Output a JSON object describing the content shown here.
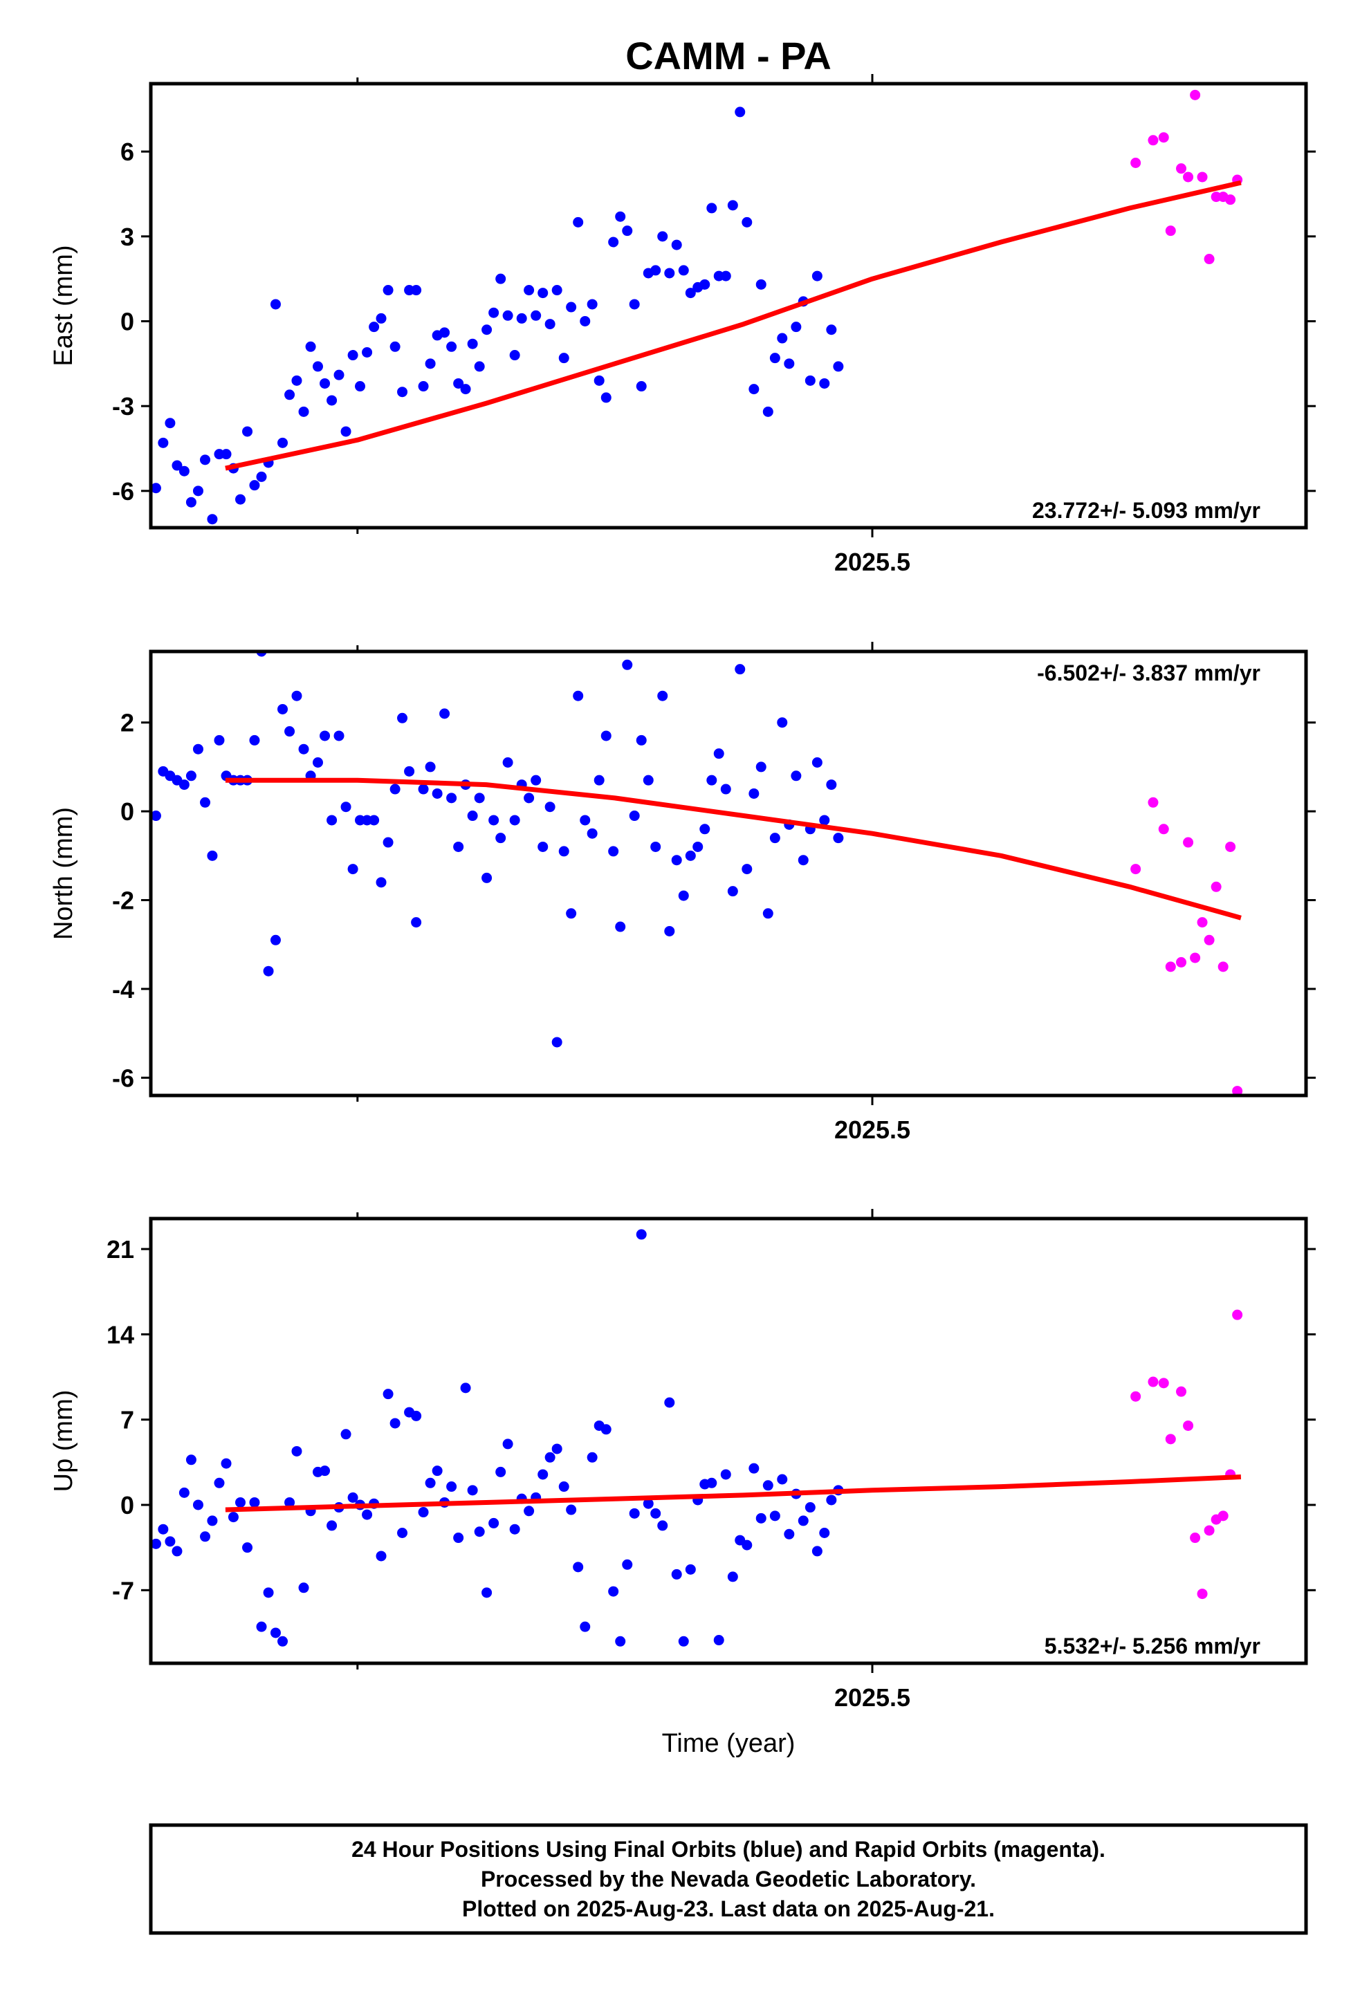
{
  "title": "CAMM - PA",
  "x_label": "Time (year)",
  "colors": {
    "final": "#0000ff",
    "rapid": "#ff00ff",
    "fit": "#ff0000",
    "frame": "#000000"
  },
  "footer": [
    "24 Hour Positions Using Final Orbits (blue) and Rapid Orbits (magenta).",
    "Processed by the Nevada Geodetic Laboratory.",
    "Plotted on 2025-Aug-23. Last data on 2025-Aug-21."
  ],
  "chart_data": [
    {
      "type": "scatter",
      "component": "east",
      "ylabel": "East (mm)",
      "ylim": [
        -7.3,
        8.4
      ],
      "yticks": [
        -6,
        -3,
        0,
        3,
        6
      ],
      "xlim": [
        2025.2197,
        2025.6685
      ],
      "xticks": [
        2025.5
      ],
      "xminor": [
        2025.3,
        2025.7
      ],
      "rate_text": "23.772+/- 5.093 mm/yr",
      "rate_position": "bottom-right",
      "fit": {
        "x": [
          2025.2487,
          2025.3,
          2025.35,
          2025.4,
          2025.45,
          2025.5,
          2025.55,
          2025.6,
          2025.6432
        ],
        "y": [
          -5.2,
          -4.2,
          -2.9,
          -1.5,
          -0.1,
          1.5,
          2.8,
          4.0,
          4.9
        ]
      },
      "final": {
        "x": [
          2025.2217,
          2025.2245,
          2025.2272,
          2025.2299,
          2025.2327,
          2025.2354,
          2025.2381,
          2025.2408,
          2025.2436,
          2025.2463,
          2025.249,
          2025.2518,
          2025.2545,
          2025.2572,
          2025.26,
          2025.2627,
          2025.2654,
          2025.2682,
          2025.2709,
          2025.2736,
          2025.2764,
          2025.2791,
          2025.2818,
          2025.2846,
          2025.2873,
          2025.29,
          2025.2928,
          2025.2955,
          2025.2982,
          2025.301,
          2025.3037,
          2025.3064,
          2025.3092,
          2025.3119,
          2025.3146,
          2025.3174,
          2025.3201,
          2025.3228,
          2025.3256,
          2025.3283,
          2025.331,
          2025.3338,
          2025.3365,
          2025.3392,
          2025.342,
          2025.3447,
          2025.3474,
          2025.3502,
          2025.3529,
          2025.3556,
          2025.3584,
          2025.3611,
          2025.3638,
          2025.3666,
          2025.3693,
          2025.372,
          2025.3748,
          2025.3775,
          2025.3802,
          2025.383,
          2025.3857,
          2025.3884,
          2025.3912,
          2025.3939,
          2025.3966,
          2025.3994,
          2025.4021,
          2025.4048,
          2025.4076,
          2025.4103,
          2025.413,
          2025.4158,
          2025.4185,
          2025.4212,
          2025.424,
          2025.4267,
          2025.4294,
          2025.4322,
          2025.4349,
          2025.4376,
          2025.4404,
          2025.4431,
          2025.4458,
          2025.4486,
          2025.4513,
          2025.454,
          2025.4568,
          2025.4595,
          2025.4622,
          2025.465,
          2025.4677,
          2025.4704,
          2025.4732,
          2025.4759,
          2025.4786,
          2025.4814,
          2025.4841,
          2025.4868
        ],
        "y": [
          -5.9,
          -4.3,
          -3.6,
          -5.1,
          -5.3,
          -6.4,
          -6.0,
          -4.9,
          -7.0,
          -4.7,
          -4.7,
          -5.2,
          -6.3,
          -3.9,
          -5.8,
          -5.5,
          -5.0,
          0.6,
          -4.3,
          -2.6,
          -2.1,
          -3.2,
          -0.9,
          -1.6,
          -2.2,
          -2.8,
          -1.9,
          -3.9,
          -1.2,
          -2.3,
          -1.1,
          -0.2,
          0.1,
          1.1,
          -0.9,
          -2.5,
          1.1,
          1.1,
          -2.3,
          -1.5,
          -0.5,
          -0.4,
          -0.9,
          -2.2,
          -2.4,
          -0.8,
          -1.6,
          -0.3,
          0.3,
          1.5,
          0.2,
          -1.2,
          0.1,
          1.1,
          0.2,
          1.0,
          -0.1,
          1.1,
          -1.3,
          0.5,
          3.5,
          0.0,
          0.6,
          -2.1,
          -2.7,
          2.8,
          3.7,
          3.2,
          0.6,
          -2.3,
          1.7,
          1.8,
          3.0,
          1.7,
          2.7,
          1.8,
          1.0,
          1.2,
          1.3,
          4.0,
          1.6,
          1.6,
          4.1,
          7.4,
          3.5,
          -2.4,
          1.3,
          -3.2,
          -1.3,
          -0.6,
          -1.5,
          -0.2,
          0.7,
          -2.1,
          1.6,
          -2.2,
          -0.3,
          -1.6
        ]
      },
      "rapid": {
        "x": [
          2025.6023,
          2025.6091,
          2025.6132,
          2025.6159,
          2025.62,
          2025.6227,
          2025.6254,
          2025.6282,
          2025.6309,
          2025.6336,
          2025.6363,
          2025.6391,
          2025.6418
        ],
        "y": [
          5.6,
          6.4,
          6.5,
          3.2,
          5.4,
          5.1,
          8.0,
          5.1,
          2.2,
          4.4,
          4.4,
          4.3,
          5.0
        ]
      }
    },
    {
      "type": "scatter",
      "component": "north",
      "ylabel": "North (mm)",
      "ylim": [
        -6.4,
        3.6
      ],
      "yticks": [
        -6,
        -4,
        -2,
        0,
        2
      ],
      "xlim": [
        2025.2197,
        2025.6685
      ],
      "xticks": [
        2025.5
      ],
      "xminor": [
        2025.3,
        2025.7
      ],
      "rate_text": "-6.502+/- 3.837 mm/yr",
      "rate_position": "top-right",
      "fit": {
        "x": [
          2025.2487,
          2025.3,
          2025.35,
          2025.4,
          2025.45,
          2025.5,
          2025.55,
          2025.6,
          2025.6432
        ],
        "y": [
          0.7,
          0.7,
          0.6,
          0.3,
          -0.1,
          -0.5,
          -1.0,
          -1.7,
          -2.4
        ]
      },
      "final": {
        "x": [
          2025.2217,
          2025.2245,
          2025.2272,
          2025.2299,
          2025.2327,
          2025.2354,
          2025.2381,
          2025.2408,
          2025.2436,
          2025.2463,
          2025.249,
          2025.2518,
          2025.2545,
          2025.2572,
          2025.26,
          2025.2627,
          2025.2654,
          2025.2682,
          2025.2709,
          2025.2736,
          2025.2764,
          2025.2791,
          2025.2818,
          2025.2846,
          2025.2873,
          2025.29,
          2025.2928,
          2025.2955,
          2025.2982,
          2025.301,
          2025.3037,
          2025.3064,
          2025.3092,
          2025.3119,
          2025.3146,
          2025.3174,
          2025.3201,
          2025.3228,
          2025.3256,
          2025.3283,
          2025.331,
          2025.3338,
          2025.3365,
          2025.3392,
          2025.342,
          2025.3447,
          2025.3474,
          2025.3502,
          2025.3529,
          2025.3556,
          2025.3584,
          2025.3611,
          2025.3638,
          2025.3666,
          2025.3693,
          2025.372,
          2025.3748,
          2025.3775,
          2025.3802,
          2025.383,
          2025.3857,
          2025.3884,
          2025.3912,
          2025.3939,
          2025.3966,
          2025.3994,
          2025.4021,
          2025.4048,
          2025.4076,
          2025.4103,
          2025.413,
          2025.4158,
          2025.4185,
          2025.4212,
          2025.424,
          2025.4267,
          2025.4294,
          2025.4322,
          2025.4349,
          2025.4376,
          2025.4404,
          2025.4431,
          2025.4458,
          2025.4486,
          2025.4513,
          2025.454,
          2025.4568,
          2025.4595,
          2025.4622,
          2025.465,
          2025.4677,
          2025.4704,
          2025.4732,
          2025.4759,
          2025.4786,
          2025.4814,
          2025.4841,
          2025.4868
        ],
        "y": [
          -0.1,
          0.9,
          0.8,
          0.7,
          0.6,
          0.8,
          1.4,
          0.2,
          -1.0,
          1.6,
          0.8,
          0.7,
          0.7,
          0.7,
          1.6,
          3.6,
          -3.6,
          -2.9,
          2.3,
          1.8,
          2.6,
          1.4,
          0.8,
          1.1,
          1.7,
          -0.2,
          1.7,
          0.1,
          -1.3,
          -0.2,
          -0.2,
          -0.2,
          -1.6,
          -0.7,
          0.5,
          2.1,
          0.9,
          -2.5,
          0.5,
          1.0,
          0.4,
          2.2,
          0.3,
          -0.8,
          0.6,
          -0.1,
          0.3,
          -1.5,
          -0.2,
          -0.6,
          1.1,
          -0.2,
          0.6,
          0.3,
          0.7,
          -0.8,
          0.1,
          -5.2,
          -0.9,
          -2.3,
          2.6,
          -0.2,
          -0.5,
          0.7,
          1.7,
          -0.9,
          -2.6,
          3.3,
          -0.1,
          1.6,
          0.7,
          -0.8,
          2.6,
          -2.7,
          -1.1,
          -1.9,
          -1.0,
          -0.8,
          -0.4,
          0.7,
          1.3,
          0.5,
          -1.8,
          3.2,
          -1.3,
          0.4,
          1.0,
          -2.3,
          -0.6,
          2.0,
          -0.3,
          0.8,
          -1.1,
          -0.4,
          1.1,
          -0.2,
          0.6,
          -0.6
        ]
      },
      "rapid": {
        "x": [
          2025.6023,
          2025.6091,
          2025.6132,
          2025.6159,
          2025.62,
          2025.6227,
          2025.6254,
          2025.6282,
          2025.6309,
          2025.6336,
          2025.6363,
          2025.6391,
          2025.6418
        ],
        "y": [
          -1.3,
          0.2,
          -0.4,
          -3.5,
          -3.4,
          -0.7,
          -3.3,
          -2.5,
          -2.9,
          -1.7,
          -3.5,
          -0.8,
          -6.3
        ]
      }
    },
    {
      "type": "scatter",
      "component": "up",
      "ylabel": "Up (mm)",
      "ylim": [
        -13,
        23.5
      ],
      "yticks": [
        -7,
        0,
        7,
        14,
        21
      ],
      "xlim": [
        2025.2197,
        2025.6685
      ],
      "xticks": [
        2025.5
      ],
      "xminor": [
        2025.3,
        2025.7
      ],
      "rate_text": "5.532+/- 5.256 mm/yr",
      "rate_position": "bottom-right",
      "fit": {
        "x": [
          2025.2487,
          2025.3,
          2025.35,
          2025.4,
          2025.45,
          2025.5,
          2025.55,
          2025.6,
          2025.6432
        ],
        "y": [
          -0.4,
          -0.1,
          0.2,
          0.5,
          0.8,
          1.2,
          1.5,
          1.9,
          2.3
        ]
      },
      "final": {
        "x": [
          2025.2217,
          2025.2245,
          2025.2272,
          2025.2299,
          2025.2327,
          2025.2354,
          2025.2381,
          2025.2408,
          2025.2436,
          2025.2463,
          2025.249,
          2025.2518,
          2025.2545,
          2025.2572,
          2025.26,
          2025.2627,
          2025.2654,
          2025.2682,
          2025.2709,
          2025.2736,
          2025.2764,
          2025.2791,
          2025.2818,
          2025.2846,
          2025.2873,
          2025.29,
          2025.2928,
          2025.2955,
          2025.2982,
          2025.301,
          2025.3037,
          2025.3064,
          2025.3092,
          2025.3119,
          2025.3146,
          2025.3174,
          2025.3201,
          2025.3228,
          2025.3256,
          2025.3283,
          2025.331,
          2025.3338,
          2025.3365,
          2025.3392,
          2025.342,
          2025.3447,
          2025.3474,
          2025.3502,
          2025.3529,
          2025.3556,
          2025.3584,
          2025.3611,
          2025.3638,
          2025.3666,
          2025.3693,
          2025.372,
          2025.3748,
          2025.3775,
          2025.3802,
          2025.383,
          2025.3857,
          2025.3884,
          2025.3912,
          2025.3939,
          2025.3966,
          2025.3994,
          2025.4021,
          2025.4048,
          2025.4076,
          2025.4103,
          2025.413,
          2025.4158,
          2025.4185,
          2025.4212,
          2025.424,
          2025.4267,
          2025.4294,
          2025.4322,
          2025.4349,
          2025.4376,
          2025.4404,
          2025.4431,
          2025.4458,
          2025.4486,
          2025.4513,
          2025.454,
          2025.4568,
          2025.4595,
          2025.4622,
          2025.465,
          2025.4677,
          2025.4704,
          2025.4732,
          2025.4759,
          2025.4786,
          2025.4814,
          2025.4841,
          2025.4868
        ],
        "y": [
          -3.2,
          -2.0,
          -3.0,
          -3.8,
          1.0,
          3.7,
          0.0,
          -2.6,
          -1.3,
          1.8,
          3.4,
          -1.0,
          0.2,
          -3.5,
          0.2,
          -10.0,
          -7.2,
          -10.5,
          -11.2,
          0.2,
          4.4,
          -6.8,
          -0.5,
          2.7,
          2.8,
          -1.7,
          -0.2,
          5.8,
          0.6,
          0.0,
          -0.8,
          0.1,
          -4.2,
          9.1,
          6.7,
          -2.3,
          7.6,
          7.3,
          -0.6,
          1.8,
          2.8,
          0.2,
          1.5,
          -2.7,
          9.6,
          1.2,
          -2.2,
          -7.2,
          -1.5,
          2.7,
          5.0,
          -2.0,
          0.5,
          -0.5,
          0.6,
          2.5,
          3.9,
          4.6,
          1.5,
          -0.4,
          -5.1,
          -10.0,
          3.9,
          6.5,
          6.2,
          -7.1,
          -11.2,
          -4.9,
          -0.7,
          22.2,
          0.1,
          -0.7,
          -1.7,
          8.4,
          -5.7,
          -11.2,
          -5.3,
          0.4,
          1.7,
          1.8,
          -11.1,
          2.5,
          -5.9,
          -2.9,
          -3.3,
          3.0,
          -1.1,
          1.6,
          -0.9,
          2.1,
          -2.4,
          0.9,
          -1.3,
          -0.2,
          -3.8,
          -2.3,
          0.4,
          1.2
        ]
      },
      "rapid": {
        "x": [
          2025.6023,
          2025.6091,
          2025.6132,
          2025.6159,
          2025.62,
          2025.6227,
          2025.6254,
          2025.6282,
          2025.6309,
          2025.6336,
          2025.6363,
          2025.6391,
          2025.6418
        ],
        "y": [
          8.9,
          10.1,
          10.0,
          5.4,
          9.3,
          6.5,
          -2.7,
          -7.3,
          -2.1,
          -1.2,
          -0.9,
          2.5,
          15.6
        ]
      }
    }
  ]
}
